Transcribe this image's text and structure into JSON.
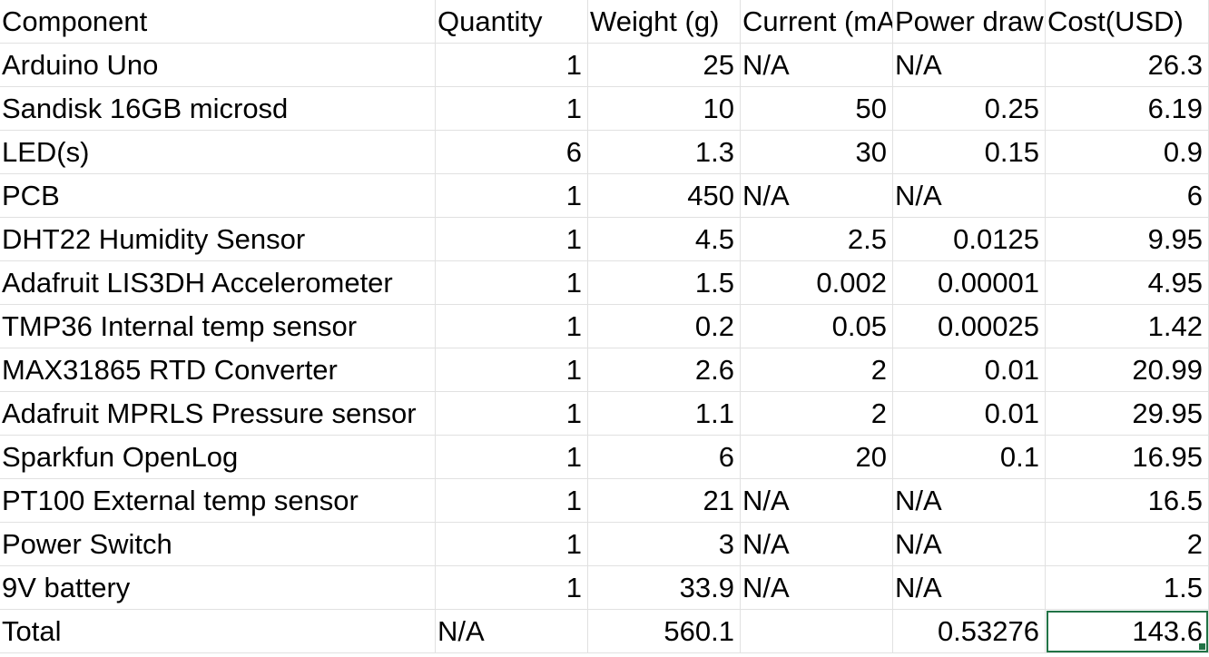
{
  "header": [
    "Component",
    "Quantity",
    "Weight (g)",
    "Current (mA)",
    "Power draw",
    "Cost(USD)"
  ],
  "rows": [
    [
      "Arduino Uno",
      "1",
      "25",
      "N/A",
      "N/A",
      "26.3"
    ],
    [
      "Sandisk 16GB microsd",
      "1",
      "10",
      "50",
      "0.25",
      "6.19"
    ],
    [
      "LED(s)",
      "6",
      "1.3",
      "30",
      "0.15",
      "0.9"
    ],
    [
      "PCB",
      "1",
      "450",
      "N/A",
      "N/A",
      "6"
    ],
    [
      "DHT22 Humidity Sensor",
      "1",
      "4.5",
      "2.5",
      "0.0125",
      "9.95"
    ],
    [
      "Adafruit LIS3DH Accelerometer",
      "1",
      "1.5",
      "0.002",
      "0.00001",
      "4.95"
    ],
    [
      "TMP36 Internal temp sensor",
      "1",
      "0.2",
      "0.05",
      "0.00025",
      "1.42"
    ],
    [
      "MAX31865 RTD Converter",
      "1",
      "2.6",
      "2",
      "0.01",
      "20.99"
    ],
    [
      "Adafruit MPRLS Pressure sensor",
      "1",
      "1.1",
      "2",
      "0.01",
      "29.95"
    ],
    [
      "Sparkfun OpenLog",
      "1",
      "6",
      "20",
      "0.1",
      "16.95"
    ],
    [
      "PT100 External temp sensor",
      "1",
      "21",
      "N/A",
      "N/A",
      "16.5"
    ],
    [
      "Power Switch",
      "1",
      "3",
      "N/A",
      "N/A",
      "2"
    ],
    [
      "9V battery",
      "1",
      "33.9",
      "N/A",
      "N/A",
      "1.5"
    ]
  ],
  "total": [
    "Total",
    "N/A",
    "560.1",
    "",
    "0.53276",
    "143.6"
  ],
  "selected_color": "#217346"
}
